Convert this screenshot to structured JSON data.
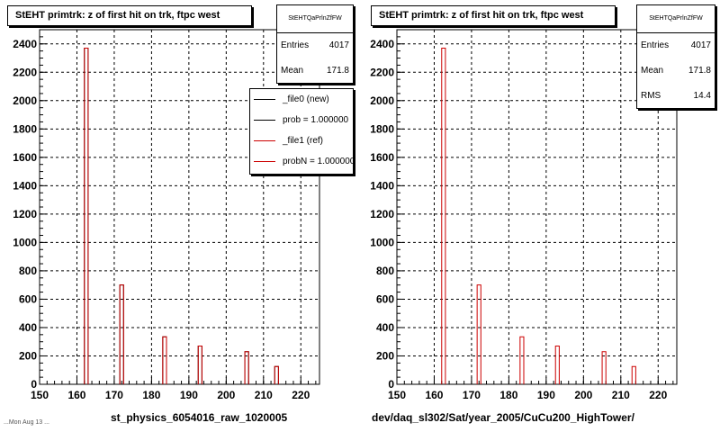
{
  "chart_data": [
    {
      "type": "bar",
      "title": "StEHT primtrk: z of first hit on trk, ftpc west",
      "xlabel": "st_physics_6054016_raw_1020005",
      "xlim": [
        150,
        225
      ],
      "ylim": [
        0,
        2500
      ],
      "xticks": [
        "150",
        "160",
        "170",
        "180",
        "190",
        "200",
        "210",
        "220"
      ],
      "yticks": [
        "0",
        "200",
        "400",
        "600",
        "800",
        "1000",
        "1200",
        "1400",
        "1600",
        "1800",
        "2000",
        "2200",
        "2400"
      ],
      "grid": true,
      "stats": {
        "name": "StEHTQaPrlnZfFW",
        "rows": [
          {
            "label": "Entries",
            "value": "4017"
          },
          {
            "label": "Mean",
            "value": "171.8"
          }
        ]
      },
      "legend": {
        "placement": "top-right",
        "entries": [
          {
            "label": "_file0 (new)",
            "color": "#000000"
          },
          {
            "label": "prob = 1.000000",
            "color": "#000000"
          },
          {
            "label": "_file1 (ref)",
            "color": "#cc0000"
          },
          {
            "label": "probN = 1.000000",
            "color": "#cc0000"
          }
        ]
      },
      "series": [
        {
          "name": "_file0 (new)",
          "color": "#000000",
          "x": [
            162.5,
            172,
            183.5,
            193,
            205.5,
            213.5
          ],
          "y": [
            2370,
            700,
            335,
            270,
            230,
            125
          ]
        },
        {
          "name": "_file1 (ref)",
          "color": "#cc0000",
          "x": [
            162.5,
            172,
            183.5,
            193,
            205.5,
            213.5
          ],
          "y": [
            2370,
            700,
            335,
            270,
            230,
            125
          ]
        }
      ]
    },
    {
      "type": "bar",
      "title": "StEHT primtrk: z of first hit on trk, ftpc west",
      "xlabel": "dev/daq_sl302/Sat/year_2005/CuCu200_HighTower/",
      "xlim": [
        150,
        225
      ],
      "ylim": [
        0,
        2500
      ],
      "xticks": [
        "150",
        "160",
        "170",
        "180",
        "190",
        "200",
        "210",
        "220"
      ],
      "yticks": [
        "0",
        "200",
        "400",
        "600",
        "800",
        "1000",
        "1200",
        "1400",
        "1600",
        "1800",
        "2000",
        "2200",
        "2400"
      ],
      "grid": true,
      "stats": {
        "name": "StEHTQaPrlnZfFW",
        "rows": [
          {
            "label": "Entries",
            "value": "4017"
          },
          {
            "label": "Mean",
            "value": "171.8"
          },
          {
            "label": "RMS",
            "value": "14.4"
          }
        ]
      },
      "series": [
        {
          "color": "#cc0000",
          "x": [
            162.5,
            172,
            183.5,
            193,
            205.5,
            213.5
          ],
          "y": [
            2370,
            700,
            335,
            270,
            230,
            125
          ]
        }
      ]
    }
  ],
  "colors": {
    "new": "#000000",
    "ref": "#cc0000",
    "grid": "#000000"
  },
  "footer": "...Mon Aug 13 ..."
}
